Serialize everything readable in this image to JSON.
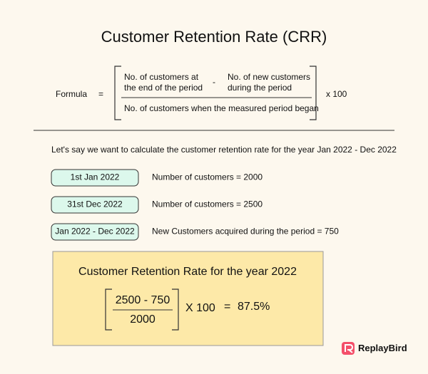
{
  "title": "Customer Retention Rate (CRR)",
  "formula": {
    "label": "Formula",
    "equals": "=",
    "numerator_left": [
      "No. of customers at",
      "the end of the period"
    ],
    "minus": "-",
    "numerator_right": [
      "No. of new customers",
      "during the period"
    ],
    "denominator": "No. of customers when the measured period began",
    "multiplier": "x 100"
  },
  "intro": "Let's say we want to calculate the customer retention rate for the year Jan 2022 - Dec 2022",
  "rows": [
    {
      "pill": "1st Jan 2022",
      "text": "Number of customers = 2000"
    },
    {
      "pill": "31st Dec 2022",
      "text": "Number of customers = 2500"
    },
    {
      "pill": "Jan 2022 - Dec 2022",
      "text": "New Customers acquired during the period = 750"
    }
  ],
  "result": {
    "title": "Customer Retention Rate for the year 2022",
    "numerator": "2500 - 750",
    "denominator": "2000",
    "multiplier": "X 100",
    "equals": "=",
    "answer": "87.5%"
  },
  "brand": "ReplayBird"
}
